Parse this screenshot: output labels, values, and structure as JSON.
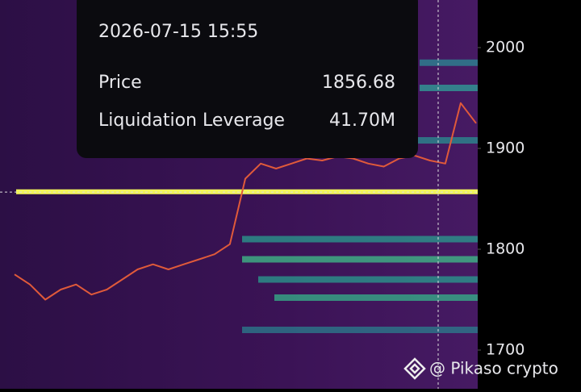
{
  "chart_data": {
    "type": "line",
    "ylim": [
      1661.6,
      2047.2
    ],
    "yticks": [
      1700,
      1800,
      1900,
      2000
    ],
    "categories": [
      null,
      null,
      null,
      null,
      null,
      null,
      null,
      null,
      null,
      null,
      null,
      null,
      null,
      null,
      null,
      null,
      null,
      null,
      null,
      null,
      null,
      null,
      null,
      null,
      null,
      null,
      null,
      null,
      null,
      null,
      null
    ],
    "series": [
      {
        "color": "#e05a3a",
        "values": [
          1775,
          1765,
          1750,
          1760,
          1765,
          1755,
          1760,
          1770,
          1780,
          1785,
          1780,
          1785,
          1790,
          1795,
          1805,
          1870,
          1885,
          1880,
          1885,
          1890,
          1888,
          1892,
          1890,
          1885,
          1882,
          1890,
          1893,
          1888,
          1885,
          1945,
          1925
        ]
      }
    ],
    "bands": [
      {
        "level": 1857,
        "color": "#f2f55a"
      },
      {
        "level": 1810,
        "color": "#2a9d8f"
      },
      {
        "level": 1790,
        "color": "#3fc08a"
      },
      {
        "level": 1770,
        "color": "#2a9d8f"
      },
      {
        "level": 1752,
        "color": "#35b48a"
      },
      {
        "level": 1720,
        "color": "#2b7f8e"
      },
      {
        "level": 1960,
        "color": "#2fa39a"
      },
      {
        "level": 1985,
        "color": "#2b8b94"
      },
      {
        "level": 1908,
        "color": "#2a8f90"
      }
    ],
    "tooltip": {
      "time": "2026-07-15 15:55",
      "price_label": "Price",
      "price": "1856.68",
      "leverage_label": "Liquidation Leverage",
      "leverage": "41.70M"
    },
    "crosshair_price": 1856.68,
    "watermark": "@ Pikaso crypto"
  }
}
